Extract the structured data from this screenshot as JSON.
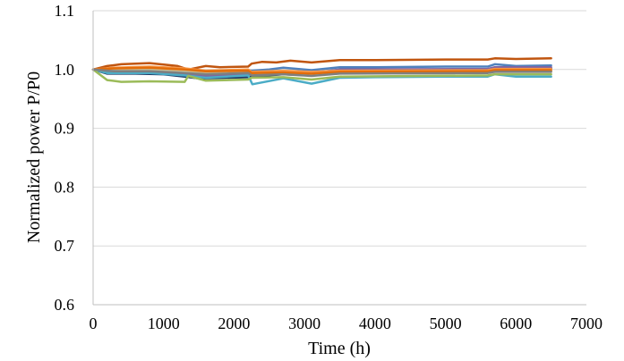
{
  "chart_data": {
    "type": "line",
    "title": "",
    "xlabel": "Time (h)",
    "ylabel": "Normalized power P/P0",
    "xlim": [
      0,
      7000
    ],
    "ylim": [
      0.6,
      1.1
    ],
    "xticks": [
      0,
      1000,
      2000,
      3000,
      4000,
      5000,
      6000,
      7000
    ],
    "yticks": [
      0.6,
      0.7,
      0.8,
      0.9,
      1.0,
      1.1
    ],
    "xtick_labels": [
      "0",
      "1000",
      "2000",
      "3000",
      "4000",
      "5000",
      "6000",
      "7000"
    ],
    "ytick_labels": [
      "0.6",
      "0.7",
      "0.8",
      "0.9",
      "1.0",
      "1.1"
    ],
    "grid": {
      "horizontal": true,
      "vertical": false
    },
    "legend": "none",
    "series": [
      {
        "color": "#C0550F",
        "points": [
          [
            0,
            1.0
          ],
          [
            200,
            1.006
          ],
          [
            400,
            1.009
          ],
          [
            800,
            1.011
          ],
          [
            1200,
            1.006
          ],
          [
            1350,
            1.0
          ],
          [
            1600,
            1.006
          ],
          [
            1800,
            1.004
          ],
          [
            2200,
            1.005
          ],
          [
            2250,
            1.01
          ],
          [
            2400,
            1.013
          ],
          [
            2600,
            1.012
          ],
          [
            2800,
            1.015
          ],
          [
            3100,
            1.012
          ],
          [
            3500,
            1.016
          ],
          [
            4000,
            1.016
          ],
          [
            5000,
            1.017
          ],
          [
            5600,
            1.017
          ],
          [
            5700,
            1.019
          ],
          [
            6000,
            1.018
          ],
          [
            6500,
            1.019
          ]
        ]
      },
      {
        "color": "#4F81BD",
        "points": [
          [
            0,
            1.0
          ],
          [
            200,
            0.998
          ],
          [
            600,
            0.999
          ],
          [
            1000,
            0.998
          ],
          [
            1300,
            0.993
          ],
          [
            1600,
            0.995
          ],
          [
            2200,
            0.999
          ],
          [
            2250,
            0.998
          ],
          [
            2500,
            1.0
          ],
          [
            2700,
            1.003
          ],
          [
            3100,
            0.999
          ],
          [
            3500,
            1.004
          ],
          [
            4000,
            1.004
          ],
          [
            5000,
            1.005
          ],
          [
            5600,
            1.005
          ],
          [
            5700,
            1.009
          ],
          [
            6000,
            1.006
          ],
          [
            6500,
            1.007
          ]
        ]
      },
      {
        "color": "#1F3864",
        "points": [
          [
            0,
            1.0
          ],
          [
            200,
            0.993
          ],
          [
            600,
            0.993
          ],
          [
            1000,
            0.992
          ],
          [
            1300,
            0.988
          ],
          [
            1500,
            0.985
          ],
          [
            2200,
            0.987
          ],
          [
            2250,
            0.988
          ],
          [
            2700,
            0.992
          ],
          [
            3100,
            0.99
          ],
          [
            3500,
            0.998
          ],
          [
            4000,
            0.999
          ],
          [
            5000,
            0.999
          ],
          [
            5600,
            0.999
          ],
          [
            5700,
            1.002
          ],
          [
            6500,
            1.002
          ]
        ]
      },
      {
        "color": "#8064A2",
        "points": [
          [
            0,
            1.0
          ],
          [
            300,
            0.996
          ],
          [
            800,
            0.996
          ],
          [
            1300,
            0.993
          ],
          [
            1600,
            0.989
          ],
          [
            2200,
            0.992
          ],
          [
            2250,
            0.991
          ],
          [
            2700,
            0.996
          ],
          [
            3100,
            0.994
          ],
          [
            3500,
            1.0
          ],
          [
            5600,
            1.001
          ],
          [
            5700,
            1.004
          ],
          [
            6500,
            1.004
          ]
        ]
      },
      {
        "color": "#4BACC6",
        "points": [
          [
            0,
            1.0
          ],
          [
            200,
            0.994
          ],
          [
            800,
            0.994
          ],
          [
            1300,
            0.99
          ],
          [
            1600,
            0.986
          ],
          [
            2200,
            0.99
          ],
          [
            2260,
            0.975
          ],
          [
            2700,
            0.985
          ],
          [
            3100,
            0.976
          ],
          [
            3500,
            0.986
          ],
          [
            4000,
            0.987
          ],
          [
            5000,
            0.988
          ],
          [
            5600,
            0.988
          ],
          [
            5700,
            0.992
          ],
          [
            6000,
            0.988
          ],
          [
            6500,
            0.988
          ]
        ]
      },
      {
        "color": "#9BBB59",
        "points": [
          [
            0,
            1.0
          ],
          [
            200,
            0.982
          ],
          [
            400,
            0.979
          ],
          [
            800,
            0.98
          ],
          [
            1300,
            0.979
          ],
          [
            1350,
            0.989
          ],
          [
            1600,
            0.981
          ],
          [
            2200,
            0.983
          ],
          [
            2250,
            0.986
          ],
          [
            2700,
            0.987
          ],
          [
            3100,
            0.983
          ],
          [
            3500,
            0.988
          ],
          [
            5600,
            0.99
          ],
          [
            5700,
            0.992
          ],
          [
            6500,
            0.992
          ]
        ]
      },
      {
        "color": "#F79646",
        "points": [
          [
            0,
            1.0
          ],
          [
            300,
            1.003
          ],
          [
            800,
            1.005
          ],
          [
            1300,
            1.002
          ],
          [
            1600,
            0.998
          ],
          [
            2200,
            1.0
          ],
          [
            2250,
            0.996
          ],
          [
            2700,
            0.998
          ],
          [
            3100,
            0.996
          ],
          [
            3500,
            0.998
          ],
          [
            5600,
            0.999
          ],
          [
            5700,
            1.001
          ],
          [
            6500,
            1.001
          ]
        ]
      },
      {
        "color": "#C4BD97",
        "points": [
          [
            0,
            1.0
          ],
          [
            300,
            1.001
          ],
          [
            800,
            1.0
          ],
          [
            1300,
            0.997
          ],
          [
            1600,
            0.995
          ],
          [
            2200,
            0.996
          ],
          [
            2250,
            0.992
          ],
          [
            2700,
            0.993
          ],
          [
            3100,
            0.99
          ],
          [
            3500,
            0.994
          ],
          [
            5600,
            0.995
          ],
          [
            5700,
            0.997
          ],
          [
            6500,
            0.997
          ]
        ]
      },
      {
        "color": "#E36C09",
        "points": [
          [
            0,
            1.0
          ],
          [
            300,
            1.002
          ],
          [
            800,
            1.003
          ],
          [
            1300,
            1.0
          ],
          [
            1600,
            0.997
          ],
          [
            2200,
            0.998
          ],
          [
            2250,
            0.994
          ],
          [
            2700,
            0.995
          ],
          [
            3100,
            0.993
          ],
          [
            3500,
            0.996
          ],
          [
            5600,
            0.997
          ],
          [
            5700,
            0.999
          ],
          [
            6500,
            0.999
          ]
        ]
      },
      {
        "color": "#7F7F7F",
        "points": [
          [
            0,
            1.0
          ],
          [
            300,
            0.997
          ],
          [
            800,
            0.997
          ],
          [
            1300,
            0.994
          ],
          [
            1600,
            0.992
          ],
          [
            2200,
            0.994
          ],
          [
            2250,
            0.99
          ],
          [
            2700,
            0.992
          ],
          [
            3100,
            0.989
          ],
          [
            3500,
            0.993
          ],
          [
            5600,
            0.994
          ],
          [
            5700,
            0.996
          ],
          [
            6500,
            0.996
          ]
        ]
      }
    ]
  }
}
